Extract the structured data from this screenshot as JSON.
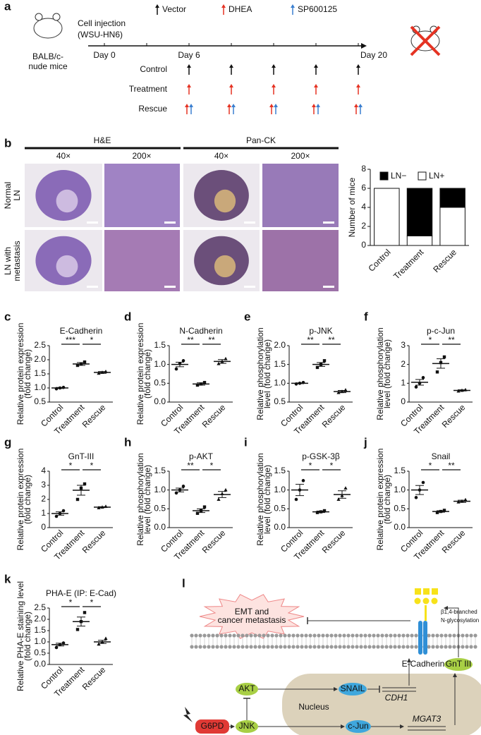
{
  "panel_a": {
    "label": "a",
    "mouse_strain": [
      "BALB/c-",
      "nude mice"
    ],
    "injection": [
      "Cell injection",
      "(WSU-HN6)"
    ],
    "legend": [
      "Vector",
      "DHEA",
      "SP600125"
    ],
    "days": [
      "Day 0",
      "Day 6",
      "Day 20"
    ],
    "groups": [
      "Control",
      "Treatment",
      "Rescue"
    ]
  },
  "panel_b": {
    "label": "b",
    "stains": [
      "H&E",
      "Pan-CK"
    ],
    "magnifications": [
      "40×",
      "200×",
      "40×",
      "200×"
    ],
    "rows": [
      [
        "Normal",
        "LN"
      ],
      [
        "LN with",
        "metastasis"
      ]
    ]
  },
  "chart_data": [
    {
      "type": "stacked_bar",
      "categories": [
        "Control",
        "Treatment",
        "Rescue"
      ],
      "series": [
        {
          "name": "LN−",
          "color": "#000000",
          "values": [
            0,
            5,
            2
          ]
        },
        {
          "name": "LN+",
          "color": "#ffffff",
          "values": [
            6,
            1,
            4
          ]
        }
      ],
      "ylabel": "Number of mice",
      "ylim": [
        0,
        8
      ],
      "yticks": [
        0,
        2,
        4,
        6,
        8
      ],
      "legend": "top"
    },
    {
      "type": "dot",
      "label": "c",
      "title": "E-Cadherin",
      "ylabel": [
        "Relative protein expression",
        "(fold change)"
      ],
      "categories": [
        "Control",
        "Treatment",
        "Rescue"
      ],
      "points": [
        [
          0.97,
          1.0,
          1.02
        ],
        [
          1.8,
          1.85,
          1.92
        ],
        [
          1.52,
          1.55,
          1.58
        ]
      ],
      "means": [
        1.0,
        1.85,
        1.55
      ],
      "errors": [
        0.02,
        0.05,
        0.03
      ],
      "significance": [
        "***",
        "*"
      ],
      "ylim": [
        0.5,
        2.5
      ],
      "yticks": [
        0.5,
        {
          "value": 1,
          "label": "1.0"
        },
        1.5,
        {
          "value": 2,
          "label": "2.0"
        },
        2.5
      ]
    },
    {
      "type": "dot",
      "label": "d",
      "title": "N-Cadherin",
      "ylabel": [
        "Relative protein expression",
        "(fold change)"
      ],
      "categories": [
        "Control",
        "Treatment",
        "Rescue"
      ],
      "points": [
        [
          0.88,
          1.02,
          1.1
        ],
        [
          0.45,
          0.48,
          0.52
        ],
        [
          1.02,
          1.08,
          1.15
        ]
      ],
      "means": [
        1.0,
        0.48,
        1.08
      ],
      "errors": [
        0.06,
        0.03,
        0.05
      ],
      "significance": [
        "**",
        "**"
      ],
      "ylim": [
        0,
        1.5
      ],
      "yticks": [
        {
          "value": 0,
          "label": "0.0"
        },
        0.5,
        {
          "value": 1,
          "label": "1.0"
        },
        1.5
      ]
    },
    {
      "type": "dot",
      "label": "e",
      "title": "p-JNK",
      "ylabel": [
        "Relative phosphorylation",
        "level (fold change)"
      ],
      "categories": [
        "Control",
        "Treatment",
        "Rescue"
      ],
      "points": [
        [
          0.98,
          1.0,
          1.02
        ],
        [
          1.42,
          1.5,
          1.6
        ],
        [
          0.75,
          0.78,
          0.82
        ]
      ],
      "means": [
        1.0,
        1.5,
        0.78
      ],
      "errors": [
        0.01,
        0.05,
        0.03
      ],
      "significance": [
        "**",
        "**"
      ],
      "ylim": [
        0.5,
        2
      ],
      "yticks": [
        0.5,
        {
          "value": 1,
          "label": "1.0"
        },
        1.5,
        {
          "value": 2,
          "label": "2.0"
        }
      ]
    },
    {
      "type": "dot",
      "label": "f",
      "title": "p-c-Jun",
      "ylabel": [
        "Relative phosphorylation",
        "level (fold change)"
      ],
      "categories": [
        "Control",
        "Treatment",
        "Rescue"
      ],
      "points": [
        [
          0.8,
          1.0,
          1.3
        ],
        [
          1.6,
          2.1,
          2.4
        ],
        [
          0.58,
          0.62,
          0.65
        ]
      ],
      "means": [
        1.05,
        2.05,
        0.62
      ],
      "errors": [
        0.15,
        0.25,
        0.03
      ],
      "significance": [
        "*",
        "**"
      ],
      "ylim": [
        0,
        3
      ],
      "yticks": [
        0,
        1,
        2,
        3
      ]
    },
    {
      "type": "dot",
      "label": "g",
      "title": "GnT-III",
      "ylabel": [
        "Relative protein expression",
        "(fold change)"
      ],
      "categories": [
        "Control",
        "Treatment",
        "Rescue"
      ],
      "points": [
        [
          0.8,
          1.0,
          1.2
        ],
        [
          2.0,
          2.8,
          3.1
        ],
        [
          1.4,
          1.45,
          1.5
        ]
      ],
      "means": [
        1.0,
        2.65,
        1.45
      ],
      "errors": [
        0.12,
        0.35,
        0.03
      ],
      "significance": [
        "*",
        "*"
      ],
      "ylim": [
        0,
        4
      ],
      "yticks": [
        0,
        1,
        2,
        3,
        4
      ]
    },
    {
      "type": "dot",
      "label": "h",
      "title": "p-AKT",
      "ylabel": [
        "Relative phosphorylation",
        "level (fold change)"
      ],
      "categories": [
        "Control",
        "Treatment",
        "Rescue"
      ],
      "points": [
        [
          0.92,
          1.0,
          1.1
        ],
        [
          0.38,
          0.45,
          0.55
        ],
        [
          0.75,
          0.9,
          1.0
        ]
      ],
      "means": [
        1.0,
        0.45,
        0.88
      ],
      "errors": [
        0.05,
        0.05,
        0.08
      ],
      "significance": [
        "**",
        "*"
      ],
      "ylim": [
        0,
        1.5
      ],
      "yticks": [
        {
          "value": 0,
          "label": "0.0"
        },
        0.5,
        {
          "value": 1,
          "label": "1.0"
        },
        1.5
      ]
    },
    {
      "type": "dot",
      "label": "i",
      "title": "p-GSK-3β",
      "ylabel": [
        "Relative phosphorylation",
        "level (fold change)"
      ],
      "categories": [
        "Control",
        "Treatment",
        "Rescue"
      ],
      "points": [
        [
          0.75,
          1.0,
          1.25
        ],
        [
          0.4,
          0.42,
          0.45
        ],
        [
          0.75,
          0.85,
          1.05
        ]
      ],
      "means": [
        1.0,
        0.42,
        0.88
      ],
      "errors": [
        0.15,
        0.02,
        0.1
      ],
      "significance": [
        "*",
        "*"
      ],
      "ylim": [
        0,
        1.5
      ],
      "yticks": [
        {
          "value": 0,
          "label": "0.0"
        },
        0.5,
        {
          "value": 1,
          "label": "1.0"
        },
        1.5
      ]
    },
    {
      "type": "dot",
      "label": "j",
      "title": "Snail",
      "ylabel": [
        "Relative protein expression",
        "(fold change)"
      ],
      "categories": [
        "Control",
        "Treatment",
        "Rescue"
      ],
      "points": [
        [
          0.8,
          1.0,
          1.2
        ],
        [
          0.4,
          0.43,
          0.46
        ],
        [
          0.68,
          0.7,
          0.74
        ]
      ],
      "means": [
        1.0,
        0.43,
        0.7
      ],
      "errors": [
        0.12,
        0.02,
        0.03
      ],
      "significance": [
        "*",
        "**"
      ],
      "ylim": [
        0,
        1.5
      ],
      "yticks": [
        {
          "value": 0,
          "label": "0.0"
        },
        0.5,
        {
          "value": 1,
          "label": "1.0"
        },
        1.5
      ]
    },
    {
      "type": "dot",
      "label": "k",
      "title": "PHA-E (IP: E-Cad)",
      "ylabel": [
        "Relative PHA-E staining level",
        "(fold change)"
      ],
      "categories": [
        "Control",
        "Treatment",
        "Rescue"
      ],
      "points": [
        [
          0.75,
          0.88,
          0.95
        ],
        [
          1.55,
          1.9,
          2.3
        ],
        [
          0.9,
          1.0,
          1.15
        ]
      ],
      "means": [
        0.88,
        1.9,
        1.0
      ],
      "errors": [
        0.06,
        0.2,
        0.07
      ],
      "significance": [
        "*",
        "*"
      ],
      "ylim": [
        0,
        2.5
      ],
      "yticks": [
        {
          "value": 0,
          "label": "0.0"
        },
        0.5,
        {
          "value": 1,
          "label": "1.0"
        },
        1.5,
        {
          "value": 2,
          "label": "2.0"
        },
        2.5
      ]
    }
  ],
  "panel_l": {
    "label": "l",
    "emt": [
      "EMT and",
      "cancer metastasis"
    ],
    "glycosylation": [
      "β1,4-branched",
      "N-glycosylation"
    ],
    "ecadherin": "E-Cadherin",
    "gnt3": "GnT III",
    "akt": "AKT",
    "snail": "SNAIL",
    "cdh1": "CDH1",
    "nucleus": "Nucleus",
    "g6pd": "G6PD",
    "jnk": "JNK",
    "cjun": "c-Jun",
    "mgat3": "MGAT3"
  }
}
